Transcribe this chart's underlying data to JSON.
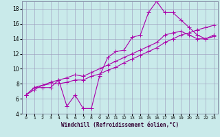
{
  "xlabel": "Windchill (Refroidissement éolien,°C)",
  "bg_color": "#c9eaea",
  "grid_color": "#9999bb",
  "line_color": "#aa00aa",
  "xlim": [
    -0.5,
    23.5
  ],
  "ylim": [
    4,
    19
  ],
  "xticks": [
    0,
    1,
    2,
    3,
    4,
    5,
    6,
    7,
    8,
    9,
    10,
    11,
    12,
    13,
    14,
    15,
    16,
    17,
    18,
    19,
    20,
    21,
    22,
    23
  ],
  "yticks": [
    4,
    6,
    8,
    10,
    12,
    14,
    16,
    18
  ],
  "line1_x": [
    0,
    1,
    2,
    3,
    4,
    5,
    6,
    7,
    8,
    9,
    10,
    11,
    12,
    13,
    14,
    15,
    16,
    17,
    18,
    19,
    20,
    21,
    22,
    23
  ],
  "line1_y": [
    6.5,
    7.5,
    7.5,
    7.5,
    8.5,
    5.0,
    6.5,
    4.7,
    4.7,
    9.0,
    11.5,
    12.3,
    12.5,
    14.2,
    14.5,
    17.5,
    19.0,
    17.5,
    17.5,
    16.5,
    15.5,
    14.5,
    14.0,
    14.5
  ],
  "line2_x": [
    0,
    1,
    2,
    3,
    4,
    5,
    6,
    7,
    8,
    9,
    10,
    11,
    12,
    13,
    14,
    15,
    16,
    17,
    18,
    19,
    20,
    21,
    22,
    23
  ],
  "line2_y": [
    6.5,
    7.5,
    7.8,
    8.0,
    8.0,
    8.2,
    8.5,
    8.5,
    9.0,
    9.3,
    9.8,
    10.2,
    10.8,
    11.3,
    11.8,
    12.3,
    12.8,
    13.5,
    14.0,
    14.5,
    14.8,
    15.2,
    15.5,
    15.8
  ],
  "line3_x": [
    0,
    1,
    2,
    3,
    4,
    5,
    6,
    7,
    8,
    9,
    10,
    11,
    12,
    13,
    14,
    15,
    16,
    17,
    18,
    19,
    20,
    21,
    22,
    23
  ],
  "line3_y": [
    6.5,
    7.2,
    7.8,
    8.2,
    8.5,
    8.8,
    9.2,
    9.0,
    9.5,
    10.0,
    10.5,
    11.0,
    11.5,
    12.0,
    12.5,
    13.0,
    13.5,
    14.5,
    14.8,
    15.0,
    14.5,
    14.0,
    14.0,
    14.3
  ]
}
